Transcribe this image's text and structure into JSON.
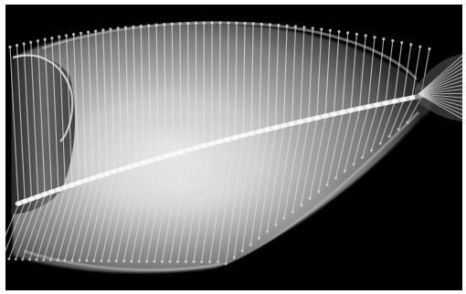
{
  "image": {
    "subject": "flatfish-skeleton",
    "modality": "x-ray",
    "colors": {
      "background": "#000000",
      "bone": "#f2f2f2",
      "body_light": "#d6d6d6",
      "body_dark": "#3a3a3a",
      "page": "#ffffff"
    }
  }
}
